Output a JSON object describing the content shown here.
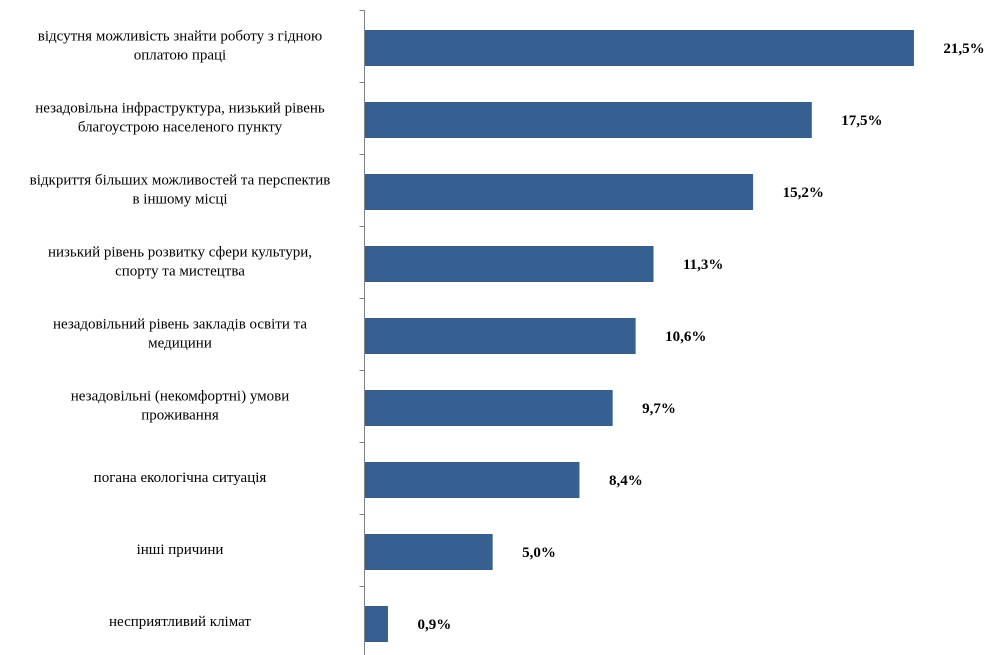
{
  "chart_data": {
    "type": "bar",
    "orientation": "horizontal",
    "categories": [
      [
        "відсутня можливість знайти роботу з гідною",
        "оплатою праці"
      ],
      [
        "незадовільна інфраструктура, низький рівень",
        "благоустрою населеного пункту"
      ],
      [
        "відкриття більших можливостей та перспектив",
        "в іншому місці"
      ],
      [
        "низький рівень розвитку сфери культури,",
        "спорту та мистецтва"
      ],
      [
        "незадовільний рівень закладів освіти та",
        "медицини"
      ],
      [
        "незадовільні (некомфортні) умови",
        "проживання"
      ],
      [
        "погана екологічна ситуація"
      ],
      [
        "інші причини"
      ],
      [
        "несприятливий клімат"
      ]
    ],
    "values": [
      21.5,
      17.5,
      15.2,
      11.3,
      10.6,
      9.7,
      8.4,
      5.0,
      0.9
    ],
    "value_labels": [
      "21,5%",
      "17,5%",
      "15,2%",
      "11,3%",
      "10,6%",
      "9,7%",
      "8,4%",
      "5,0%",
      "0,9%"
    ],
    "unit": "%",
    "xlim": [
      0,
      23.5
    ],
    "bar_color": "#376092",
    "axis_color": "#808080",
    "grid": false,
    "legend": "none"
  }
}
